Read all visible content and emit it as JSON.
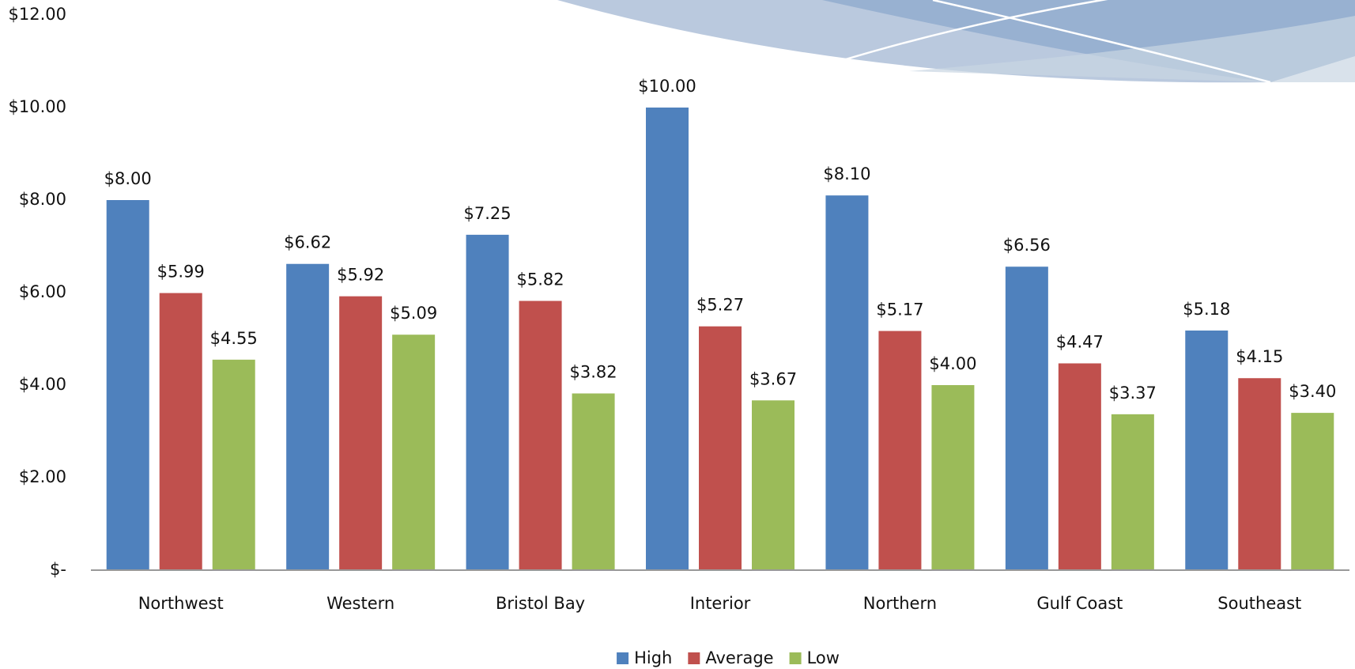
{
  "chart_data": {
    "type": "bar",
    "categories": [
      "Northwest",
      "Western",
      "Bristol Bay",
      "Interior",
      "Northern",
      "Gulf Coast",
      "Southeast"
    ],
    "series": [
      {
        "name": "High",
        "color": "#4f81bd",
        "values": [
          8.0,
          6.62,
          7.25,
          10.0,
          8.1,
          6.56,
          5.18
        ],
        "value_labels": [
          "$8.00",
          "$6.62",
          "$7.25",
          "$10.00",
          "$8.10",
          "$6.56",
          "$5.18"
        ]
      },
      {
        "name": "Average",
        "color": "#c0504d",
        "values": [
          5.99,
          5.92,
          5.82,
          5.27,
          5.17,
          4.47,
          4.15
        ],
        "value_labels": [
          "$5.99",
          "$5.92",
          "$5.82",
          "$5.27",
          "$5.17",
          "$4.47",
          "$4.15"
        ]
      },
      {
        "name": "Low",
        "color": "#9bbb59",
        "values": [
          4.55,
          5.09,
          3.82,
          3.67,
          4.0,
          3.37,
          3.4
        ],
        "value_labels": [
          "$4.55",
          "$5.09",
          "$3.82",
          "$3.67",
          "$4.00",
          "$3.37",
          "$3.40"
        ]
      }
    ],
    "ylim": [
      0,
      12
    ],
    "yticks": [
      {
        "value": 0,
        "label": "$-"
      },
      {
        "value": 2,
        "label": "$2.00"
      },
      {
        "value": 4,
        "label": "$4.00"
      },
      {
        "value": 6,
        "label": "$6.00"
      },
      {
        "value": 8,
        "label": "$8.00"
      },
      {
        "value": 10,
        "label": "$10.00"
      },
      {
        "value": 12,
        "label": "$12.00"
      }
    ],
    "grid": false,
    "legend": "bottom"
  }
}
